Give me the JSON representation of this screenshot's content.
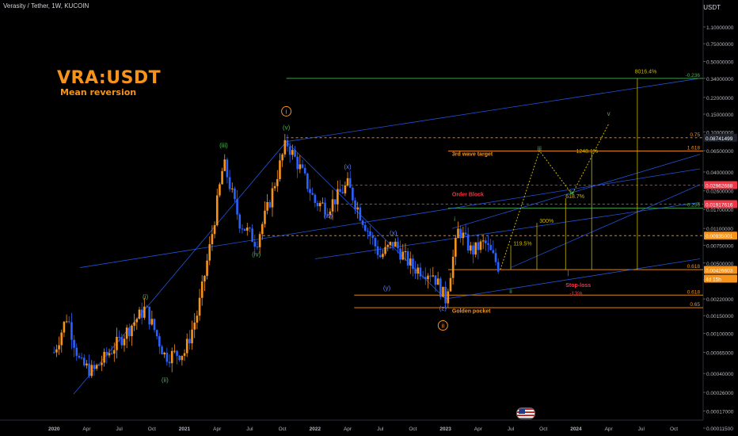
{
  "header": {
    "symbol_line": "Verasity / Tether, 1W, KUCOIN",
    "currency": "USDT"
  },
  "overlay": {
    "title": "VRA:USDT",
    "subtitle": "Mean reversion"
  },
  "colors": {
    "bull": "#f7931a",
    "bear": "#2962ff",
    "green": "#4caf50",
    "orange": "#f7931a",
    "red": "#f23645",
    "fib_green": "#4caf50",
    "target": "#c8b400"
  },
  "chart_data": {
    "type": "candlestick",
    "scale": "log",
    "x_ticks": [
      "2020",
      "Apr",
      "Jul",
      "Oct",
      "2021",
      "Apr",
      "Jul",
      "Oct",
      "2022",
      "Apr",
      "Jul",
      "Oct",
      "2023",
      "Apr",
      "Jul",
      "Oct",
      "2024",
      "Apr",
      "Jul",
      "Oct"
    ],
    "y_ticks": [
      {
        "v": 1.1,
        "t": "1.10000000"
      },
      {
        "v": 0.75,
        "t": "0.75000000"
      },
      {
        "v": 0.5,
        "t": "0.50000000"
      },
      {
        "v": 0.34,
        "t": "0.34000000"
      },
      {
        "v": 0.22,
        "t": "0.22000000"
      },
      {
        "v": 0.15,
        "t": "0.15000000"
      },
      {
        "v": 0.1,
        "t": "0.10000000"
      },
      {
        "v": 0.065,
        "t": "0.06500000"
      },
      {
        "v": 0.04,
        "t": "0.04000000"
      },
      {
        "v": 0.026,
        "t": "0.02600000"
      },
      {
        "v": 0.017,
        "t": "0.01700000"
      },
      {
        "v": 0.011,
        "t": "0.01100000"
      },
      {
        "v": 0.0075,
        "t": "0.00750000"
      },
      {
        "v": 0.005,
        "t": "0.00500000"
      },
      {
        "v": 0.0034,
        "t": "0.00340000"
      },
      {
        "v": 0.0022,
        "t": "0.00220000"
      },
      {
        "v": 0.0015,
        "t": "0.00150000"
      },
      {
        "v": 0.001,
        "t": "0.00100000"
      },
      {
        "v": 0.00065,
        "t": "0.00065000"
      },
      {
        "v": 0.0004,
        "t": "0.00040000"
      },
      {
        "v": 0.00026,
        "t": "0.00026000"
      },
      {
        "v": 0.00017,
        "t": "0.00017000"
      },
      {
        "v": 0.000115,
        "t": "0.00011500"
      }
    ],
    "price_badges": [
      {
        "v": 0.08741499,
        "t": "0.08741499",
        "style": "dark"
      },
      {
        "v": 0.02962688,
        "t": "0.02962688",
        "style": "red"
      },
      {
        "v": 0.01917616,
        "t": "0.01917616",
        "style": "red"
      },
      {
        "v": 0.00935001,
        "t": "0.00935001",
        "style": "orange"
      },
      {
        "v": 0.00426603,
        "t": "0.00426603",
        "style": "orange"
      },
      {
        "v": 0.00426603,
        "t": "4d 15h",
        "style": "orange-sub"
      }
    ],
    "price_path": [
      {
        "t": 2020.0,
        "p": 0.00065
      },
      {
        "t": 2020.1,
        "p": 0.0015
      },
      {
        "t": 2020.2,
        "p": 0.0005
      },
      {
        "t": 2020.3,
        "p": 0.00042
      },
      {
        "t": 2020.5,
        "p": 0.00085
      },
      {
        "t": 2020.7,
        "p": 0.0018
      },
      {
        "t": 2020.85,
        "p": 0.0006
      },
      {
        "t": 2021.0,
        "p": 0.00065
      },
      {
        "t": 2021.1,
        "p": 0.0016
      },
      {
        "t": 2021.2,
        "p": 0.008
      },
      {
        "t": 2021.3,
        "p": 0.05
      },
      {
        "t": 2021.42,
        "p": 0.013
      },
      {
        "t": 2021.55,
        "p": 0.008
      },
      {
        "t": 2021.65,
        "p": 0.02
      },
      {
        "t": 2021.78,
        "p": 0.08
      },
      {
        "t": 2021.9,
        "p": 0.04
      },
      {
        "t": 2022.0,
        "p": 0.02
      },
      {
        "t": 2022.1,
        "p": 0.018
      },
      {
        "t": 2022.25,
        "p": 0.03
      },
      {
        "t": 2022.35,
        "p": 0.015
      },
      {
        "t": 2022.5,
        "p": 0.0058
      },
      {
        "t": 2022.6,
        "p": 0.008
      },
      {
        "t": 2022.75,
        "p": 0.0045
      },
      {
        "t": 2022.9,
        "p": 0.004
      },
      {
        "t": 2023.0,
        "p": 0.0022
      },
      {
        "t": 2023.05,
        "p": 0.005
      },
      {
        "t": 2023.1,
        "p": 0.011
      },
      {
        "t": 2023.2,
        "p": 0.0065
      },
      {
        "t": 2023.3,
        "p": 0.008
      },
      {
        "t": 2023.42,
        "p": 0.0043
      }
    ],
    "wave_labels": [
      {
        "t": "(i)",
        "x": 2020.7,
        "p": 0.0022,
        "c": "green",
        "pos": "above"
      },
      {
        "t": "(ii)",
        "x": 2020.85,
        "p": 0.00033,
        "c": "green",
        "pos": "below"
      },
      {
        "t": "(iii)",
        "x": 2021.3,
        "p": 0.07,
        "c": "green",
        "pos": "above"
      },
      {
        "t": "(iv)",
        "x": 2021.55,
        "p": 0.0058,
        "c": "green",
        "pos": "below"
      },
      {
        "t": "(v)",
        "x": 2021.78,
        "p": 0.105,
        "c": "green",
        "pos": "above"
      },
      {
        "t": "i",
        "x": 2021.78,
        "p": 0.16,
        "c": "orange",
        "pos": "circle"
      },
      {
        "t": "(w)",
        "x": 2022.1,
        "p": 0.014,
        "c": "blue",
        "pos": "label"
      },
      {
        "t": "(x)",
        "x": 2022.25,
        "p": 0.043,
        "c": "blue",
        "pos": "label"
      },
      {
        "t": "(x)",
        "x": 2022.6,
        "p": 0.0095,
        "c": "blue",
        "pos": "label"
      },
      {
        "t": "(y)",
        "x": 2022.55,
        "p": 0.0027,
        "c": "blue",
        "pos": "label"
      },
      {
        "t": "(z)",
        "x": 2022.98,
        "p": 0.0017,
        "c": "blue",
        "pos": "label"
      },
      {
        "t": "ii",
        "x": 2022.98,
        "p": 0.0012,
        "c": "orange",
        "pos": "circle"
      },
      {
        "t": "i",
        "x": 2023.07,
        "p": 0.013,
        "c": "green",
        "pos": "label"
      },
      {
        "t": "ii",
        "x": 2023.5,
        "p": 0.0025,
        "c": "green",
        "pos": "label"
      },
      {
        "t": "iii",
        "x": 2023.72,
        "p": 0.065,
        "c": "green",
        "pos": "label"
      },
      {
        "t": "iv",
        "x": 2023.97,
        "p": 0.024,
        "c": "green",
        "pos": "label"
      },
      {
        "t": "v",
        "x": 2024.25,
        "p": 0.145,
        "c": "green",
        "pos": "label"
      }
    ],
    "hlines": [
      {
        "p": 0.34,
        "x1": 2021.78,
        "x2": 2024.7,
        "c": "green",
        "label": "-0.236",
        "side": "right"
      },
      {
        "p": 0.0874,
        "x1": 2021.78,
        "x2": 2024.7,
        "c": "orange",
        "dash": true,
        "label": "0.75",
        "side": "right"
      },
      {
        "p": 0.0646,
        "x1": 2023.02,
        "x2": 2024.7,
        "c": "orange",
        "label": "1.618",
        "side": "right"
      },
      {
        "p": 0.0296,
        "x1": 2022.2,
        "x2": 2024.7,
        "c": "red",
        "dash": true,
        "label": "",
        "side": "right"
      },
      {
        "p": 0.0192,
        "x1": 2022.2,
        "x2": 2024.7,
        "c": "red",
        "dash": true,
        "label": "",
        "side": "right"
      },
      {
        "p": 0.0175,
        "x1": 2023.02,
        "x2": 2024.7,
        "c": "green",
        "label": "-0.236",
        "side": "right"
      },
      {
        "p": 0.00935,
        "x1": 2021.6,
        "x2": 2024.7,
        "c": "orange",
        "dash": true,
        "label": "",
        "side": "right"
      },
      {
        "p": 0.0043,
        "x1": 2023.02,
        "x2": 2024.7,
        "c": "orange",
        "label": "0.618",
        "side": "right"
      },
      {
        "p": 0.0024,
        "x1": 2022.3,
        "x2": 2024.7,
        "c": "orange",
        "label": "0.618",
        "side": "right"
      },
      {
        "p": 0.0018,
        "x1": 2022.3,
        "x2": 2024.7,
        "c": "orange",
        "label": "0.65",
        "side": "right"
      }
    ],
    "annotations": [
      {
        "t": "3rd wave target",
        "x": 2023.05,
        "p": 0.058,
        "c": "orange"
      },
      {
        "t": "Order Block",
        "x": 2023.05,
        "p": 0.023,
        "c": "red"
      },
      {
        "t": "Golden pocket",
        "x": 2023.05,
        "p": 0.0016,
        "c": "orange"
      },
      {
        "t": "8016.4%",
        "x": 2024.45,
        "p": 0.38,
        "c": "target"
      },
      {
        "t": "1248.1%",
        "x": 2024.0,
        "p": 0.062,
        "c": "target"
      },
      {
        "t": "618.7%",
        "x": 2023.92,
        "p": 0.022,
        "c": "target"
      },
      {
        "t": "300%",
        "x": 2023.72,
        "p": 0.0125,
        "c": "target"
      },
      {
        "t": "119.5%",
        "x": 2023.52,
        "p": 0.0075,
        "c": "target"
      },
      {
        "t": "Stop-loss",
        "x": 2023.92,
        "p": 0.0029,
        "c": "red"
      },
      {
        "t": "-13%",
        "x": 2023.95,
        "p": 0.0024,
        "c": "red"
      }
    ]
  }
}
